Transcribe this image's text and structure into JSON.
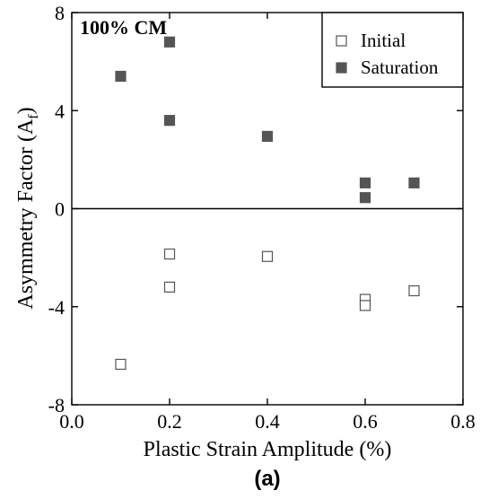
{
  "chart_data": {
    "type": "scatter",
    "panel_label": "(a)",
    "annotation": "100% CM",
    "xlabel": "Plastic Strain Amplitude (%)",
    "ylabel_main": "Asymmetry Factor (A",
    "ylabel_sub": "f",
    "ylabel_close": ")",
    "xlim": [
      0.0,
      0.8
    ],
    "ylim": [
      -8,
      8
    ],
    "x_ticks": [
      0.0,
      0.2,
      0.4,
      0.6,
      0.8
    ],
    "x_tick_labels": [
      "0.0",
      "0.2",
      "0.4",
      "0.6",
      "0.8"
    ],
    "y_ticks": [
      -8,
      -4,
      0,
      4,
      8
    ],
    "y_tick_labels": [
      "-8",
      "-4",
      "0",
      "4",
      "8"
    ],
    "zero_line": true,
    "grid": false,
    "legend_position": "top-right",
    "series": [
      {
        "name": "Initial",
        "marker": "open-square",
        "color": "#555555",
        "points": [
          {
            "x": 0.1,
            "y": -6.35
          },
          {
            "x": 0.2,
            "y": -1.85
          },
          {
            "x": 0.2,
            "y": -3.2
          },
          {
            "x": 0.4,
            "y": -1.95
          },
          {
            "x": 0.6,
            "y": -3.7
          },
          {
            "x": 0.6,
            "y": -3.95
          },
          {
            "x": 0.7,
            "y": -3.35
          }
        ]
      },
      {
        "name": "Saturation",
        "marker": "filled-square",
        "color": "#555555",
        "points": [
          {
            "x": 0.1,
            "y": 5.4
          },
          {
            "x": 0.2,
            "y": 6.8
          },
          {
            "x": 0.2,
            "y": 3.6
          },
          {
            "x": 0.4,
            "y": 2.95
          },
          {
            "x": 0.6,
            "y": 1.05
          },
          {
            "x": 0.6,
            "y": 0.45
          },
          {
            "x": 0.7,
            "y": 1.05
          }
        ]
      }
    ]
  }
}
